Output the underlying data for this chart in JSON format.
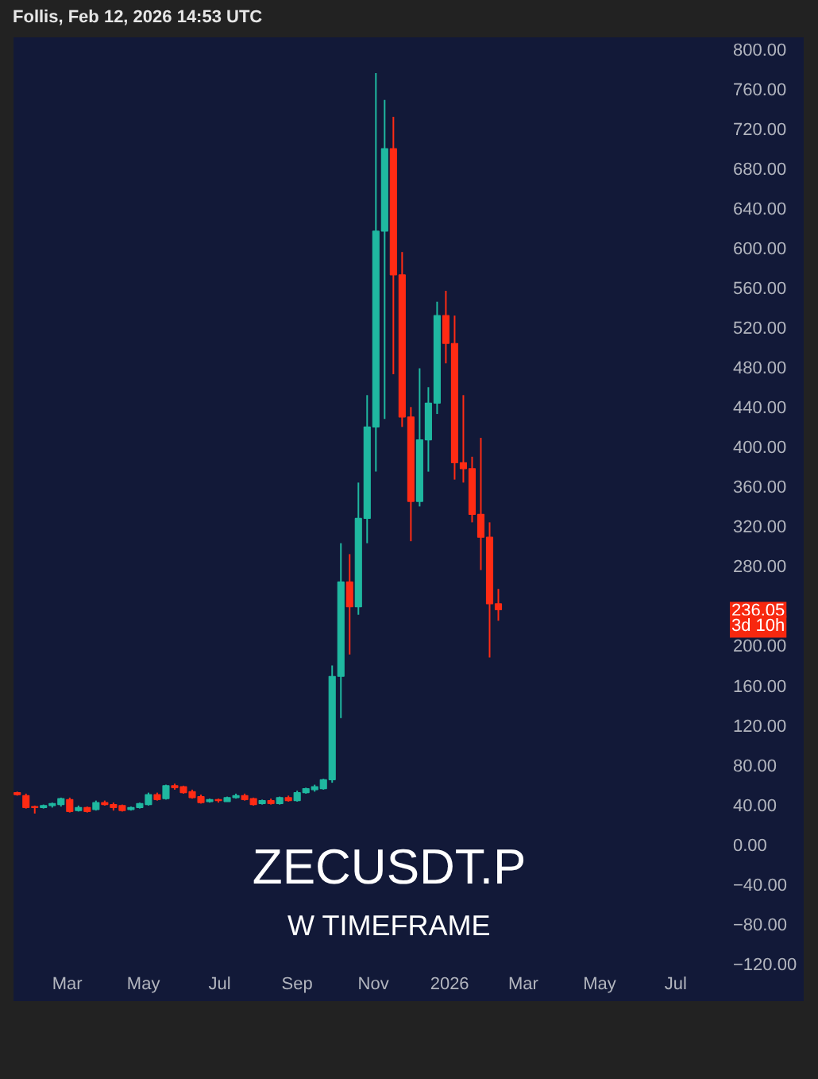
{
  "chart_data": {
    "type": "candlestick",
    "title": "ZECUSDT.P",
    "subtitle": "W TIMEFRAME",
    "annotations": [
      "Follis, Feb 12, 2026 14:53 UTC",
      "236.05",
      "3d 10h"
    ],
    "x": [
      "2025-01-20",
      "2025-01-27",
      "2025-02-03",
      "2025-02-10",
      "2025-02-17",
      "2025-02-24",
      "2025-03-03",
      "2025-03-10",
      "2025-03-17",
      "2025-03-24",
      "2025-03-31",
      "2025-04-07",
      "2025-04-14",
      "2025-04-21",
      "2025-04-28",
      "2025-05-05",
      "2025-05-12",
      "2025-05-19",
      "2025-05-26",
      "2025-06-02",
      "2025-06-09",
      "2025-06-16",
      "2025-06-23",
      "2025-06-30",
      "2025-07-07",
      "2025-07-14",
      "2025-07-21",
      "2025-07-28",
      "2025-08-04",
      "2025-08-11",
      "2025-08-18",
      "2025-08-25",
      "2025-09-01",
      "2025-09-08",
      "2025-09-15",
      "2025-09-22",
      "2025-09-29",
      "2025-10-06",
      "2025-10-13",
      "2025-10-20",
      "2025-10-27",
      "2025-11-03",
      "2025-11-10",
      "2025-11-17",
      "2025-11-24",
      "2025-12-01",
      "2025-12-08",
      "2025-12-15",
      "2025-12-22",
      "2025-12-29",
      "2026-01-05",
      "2026-01-12",
      "2026-01-19",
      "2026-01-26",
      "2026-02-02",
      "2026-02-09"
    ],
    "ohlc": [
      [
        52,
        53,
        49,
        50
      ],
      [
        49,
        51,
        36,
        37
      ],
      [
        38,
        39,
        31,
        37
      ],
      [
        37,
        40,
        36,
        39
      ],
      [
        39,
        42,
        37,
        41
      ],
      [
        40,
        47,
        38,
        46
      ],
      [
        45,
        47,
        32,
        33
      ],
      [
        34,
        39,
        33,
        37
      ],
      [
        37,
        38,
        32,
        33
      ],
      [
        35,
        44,
        34,
        42
      ],
      [
        42,
        44,
        39,
        40
      ],
      [
        40,
        42,
        34,
        37
      ],
      [
        39,
        40,
        33,
        34
      ],
      [
        35,
        38,
        34,
        37
      ],
      [
        37,
        42,
        36,
        41
      ],
      [
        40,
        52,
        39,
        50
      ],
      [
        50,
        52,
        44,
        45
      ],
      [
        46,
        60,
        45,
        59
      ],
      [
        59,
        61,
        55,
        57
      ],
      [
        58,
        59,
        51,
        52
      ],
      [
        53,
        55,
        46,
        47
      ],
      [
        48,
        50,
        41,
        42
      ],
      [
        43,
        46,
        42,
        45
      ],
      [
        45,
        46,
        42,
        44
      ],
      [
        43,
        48,
        43,
        47
      ],
      [
        47,
        51,
        46,
        49
      ],
      [
        49,
        51,
        44,
        45
      ],
      [
        46,
        47,
        39,
        40
      ],
      [
        41,
        45,
        40,
        44
      ],
      [
        44,
        46,
        40,
        41
      ],
      [
        41,
        48,
        40,
        47
      ],
      [
        47,
        49,
        43,
        44
      ],
      [
        44,
        54,
        43,
        52
      ],
      [
        52,
        57,
        51,
        56
      ],
      [
        55,
        60,
        53,
        58
      ],
      [
        56,
        66,
        55,
        65
      ],
      [
        65,
        180,
        62,
        169
      ],
      [
        169,
        303,
        127,
        264
      ],
      [
        264,
        292,
        191,
        239
      ],
      [
        239,
        364,
        231,
        328
      ],
      [
        328,
        452,
        303,
        420
      ],
      [
        420,
        776,
        375,
        617
      ],
      [
        617,
        749,
        428,
        700
      ],
      [
        700,
        732,
        473,
        573
      ],
      [
        573,
        596,
        420,
        430
      ],
      [
        430,
        440,
        305,
        345
      ],
      [
        345,
        479,
        340,
        407
      ],
      [
        407,
        460,
        375,
        444
      ],
      [
        444,
        546,
        433,
        532
      ],
      [
        532,
        557,
        484,
        504
      ],
      [
        504,
        532,
        367,
        384
      ],
      [
        384,
        452,
        364,
        378
      ],
      [
        378,
        390,
        324,
        332
      ],
      [
        332,
        409,
        276,
        309
      ],
      [
        309,
        324,
        188,
        242
      ],
      [
        242,
        257,
        225,
        236.05
      ]
    ],
    "colors": [
      "#ff2b14",
      "#ff2b14",
      "#ff2b14",
      "#1fb8a0",
      "#1fb8a0",
      "#1fb8a0",
      "#ff2b14",
      "#1fb8a0",
      "#ff2b14",
      "#1fb8a0",
      "#ff2b14",
      "#ff2b14",
      "#ff2b14",
      "#1fb8a0",
      "#1fb8a0",
      "#1fb8a0",
      "#ff2b14",
      "#1fb8a0",
      "#ff2b14",
      "#ff2b14",
      "#ff2b14",
      "#ff2b14",
      "#1fb8a0",
      "#ff2b14",
      "#1fb8a0",
      "#1fb8a0",
      "#ff2b14",
      "#ff2b14",
      "#1fb8a0",
      "#ff2b14",
      "#1fb8a0",
      "#ff2b14",
      "#1fb8a0",
      "#1fb8a0",
      "#1fb8a0",
      "#1fb8a0",
      "#1fb8a0",
      "#1fb8a0",
      "#ff2b14",
      "#1fb8a0",
      "#1fb8a0",
      "#1fb8a0",
      "#1fb8a0",
      "#ff2b14",
      "#ff2b14",
      "#ff2b14",
      "#1fb8a0",
      "#1fb8a0",
      "#1fb8a0",
      "#ff2b14",
      "#ff2b14",
      "#ff2b14",
      "#ff2b14",
      "#ff2b14",
      "#ff2b14",
      "#ff2b14"
    ],
    "xlim": [
      "2025-01-17",
      "2026-10-12"
    ],
    "ylim": [
      -125,
      812
    ],
    "xticks": [
      {
        "value": "2025-03-01",
        "label": "Mar"
      },
      {
        "value": "2025-05-01",
        "label": "May"
      },
      {
        "value": "2025-07-01",
        "label": "Jul"
      },
      {
        "value": "2025-09-01",
        "label": "Sep"
      },
      {
        "value": "2025-11-01",
        "label": "Nov"
      },
      {
        "value": "2026-01-01",
        "label": "2026"
      },
      {
        "value": "2026-03-01",
        "label": "Mar"
      },
      {
        "value": "2026-05-01",
        "label": "May"
      },
      {
        "value": "2026-07-01",
        "label": "Jul"
      }
    ],
    "yticks": [
      {
        "value": 800,
        "label": "800.00"
      },
      {
        "value": 760,
        "label": "760.00"
      },
      {
        "value": 720,
        "label": "720.00"
      },
      {
        "value": 680,
        "label": "680.00"
      },
      {
        "value": 640,
        "label": "640.00"
      },
      {
        "value": 600,
        "label": "600.00"
      },
      {
        "value": 560,
        "label": "560.00"
      },
      {
        "value": 520,
        "label": "520.00"
      },
      {
        "value": 480,
        "label": "480.00"
      },
      {
        "value": 440,
        "label": "440.00"
      },
      {
        "value": 400,
        "label": "400.00"
      },
      {
        "value": 360,
        "label": "360.00"
      },
      {
        "value": 320,
        "label": "320.00"
      },
      {
        "value": 280,
        "label": "280.00"
      },
      {
        "value": 200,
        "label": "200.00"
      },
      {
        "value": 160,
        "label": "160.00"
      },
      {
        "value": 120,
        "label": "120.00"
      },
      {
        "value": 80,
        "label": "80.00"
      },
      {
        "value": 40,
        "label": "40.00"
      },
      {
        "value": 0,
        "label": "0.00"
      },
      {
        "value": -40,
        "label": "−40.00"
      },
      {
        "value": -80,
        "label": "−80.00"
      },
      {
        "value": -120,
        "label": "−120.00"
      }
    ]
  }
}
